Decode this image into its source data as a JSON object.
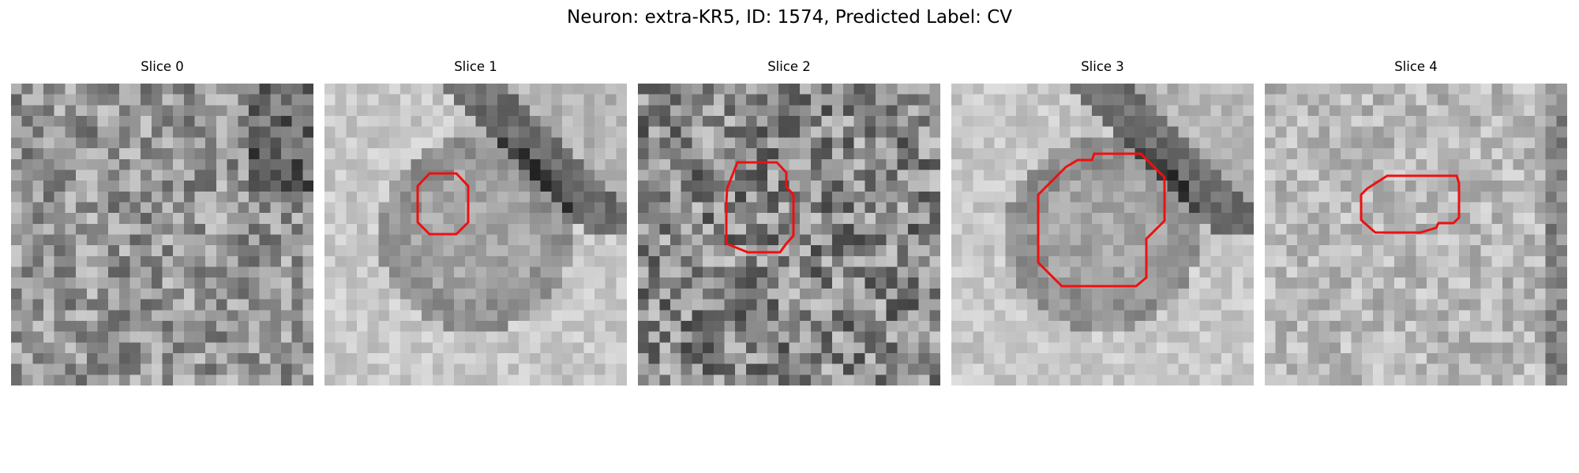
{
  "figure": {
    "title": "Neuron: extra-KR5, ID: 1574, Predicted Label: CV"
  },
  "panels": [
    {
      "title": "Slice 0",
      "has_contour": false,
      "texture": "noisy-dark"
    },
    {
      "title": "Slice 1",
      "has_contour": true,
      "texture": "bright-cell"
    },
    {
      "title": "Slice 2",
      "has_contour": true,
      "texture": "noisy-mid"
    },
    {
      "title": "Slice 3",
      "has_contour": true,
      "texture": "bright-cell"
    },
    {
      "title": "Slice 4",
      "has_contour": true,
      "texture": "bright-speckle"
    }
  ],
  "colors": {
    "contour": "#ee1010",
    "background": "#ffffff"
  }
}
